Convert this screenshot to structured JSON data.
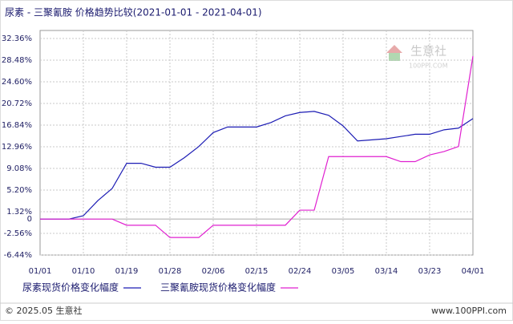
{
  "chart_data": {
    "type": "line",
    "title": "尿素 - 三聚氰胺 价格趋势比较(2021-01-01 - 2021-04-01)",
    "categories": [
      "01/01",
      null,
      null,
      "01/10",
      null,
      null,
      "01/19",
      null,
      null,
      "01/28",
      null,
      null,
      "02/06",
      null,
      null,
      "02/15",
      null,
      null,
      "02/24",
      null,
      null,
      "03/05",
      null,
      null,
      "03/14",
      null,
      null,
      "03/23",
      null,
      null,
      "04/01"
    ],
    "series": [
      {
        "name": "尿素现货价格变化幅度",
        "color": "#1c1cb4",
        "values": [
          0,
          0,
          0,
          0.6,
          3.3,
          5.5,
          10.0,
          10.0,
          9.3,
          9.3,
          11.0,
          13.0,
          15.5,
          16.5,
          16.5,
          16.5,
          17.3,
          18.5,
          19.1,
          19.3,
          18.6,
          16.7,
          14.0,
          14.2,
          14.4,
          14.8,
          15.2,
          15.2,
          16.0,
          16.3,
          18.0
        ]
      },
      {
        "name": "三聚氰胺现货价格变化幅度",
        "color": "#e020d0",
        "values": [
          0,
          0,
          0,
          0,
          0,
          0,
          -1.1,
          -1.1,
          -1.1,
          -3.3,
          -3.3,
          -3.3,
          -1.1,
          -1.1,
          -1.1,
          -1.1,
          -1.1,
          -1.1,
          1.6,
          1.6,
          11.2,
          11.2,
          11.2,
          11.2,
          11.2,
          10.3,
          10.3,
          11.5,
          12.1,
          13.0,
          29.2
        ]
      }
    ],
    "ylim": [
      -6.44,
      32.36
    ],
    "yticks": [
      {
        "value": 32.36,
        "label": "32.36%"
      },
      {
        "value": 28.48,
        "label": "28.48%"
      },
      {
        "value": 24.6,
        "label": "24.60%"
      },
      {
        "value": 20.72,
        "label": "20.72%"
      },
      {
        "value": 16.84,
        "label": "16.84%"
      },
      {
        "value": 12.96,
        "label": "12.96%"
      },
      {
        "value": 9.08,
        "label": "9.08%"
      },
      {
        "value": 5.2,
        "label": "5.20%"
      },
      {
        "value": 1.32,
        "label": "1.32%"
      },
      0,
      {
        "value": -2.56,
        "label": "-2.56%"
      },
      {
        "value": -6.44,
        "label": "-6.44%"
      }
    ],
    "grid": true,
    "watermark": {
      "brand": "生意社",
      "site": "100PPI.COM"
    },
    "footer": {
      "left": "© 2025.05 生意社",
      "right": "www.100PPI.com"
    }
  }
}
